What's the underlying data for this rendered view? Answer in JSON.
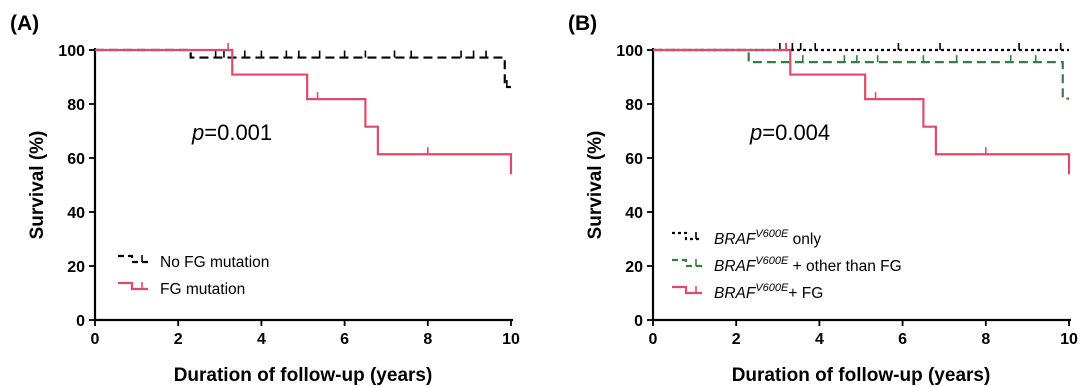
{
  "chart_data": [
    {
      "type": "line",
      "panel_label": "(A)",
      "xlabel": "Duration of follow-up (years)",
      "ylabel": "Survival (%)",
      "xlim": [
        0,
        10
      ],
      "ylim": [
        0,
        100
      ],
      "xticks": [
        0,
        2,
        4,
        6,
        8,
        10
      ],
      "yticks": [
        0,
        20,
        40,
        60,
        80,
        100
      ],
      "annotation": {
        "italic": "p",
        "text": "=0.001"
      },
      "legend_position": "bottom-left",
      "series": [
        {
          "name": "No FG mutation",
          "color": "#000000",
          "dash": "dashed",
          "steps": [
            [
              0,
              100
            ],
            [
              2.3,
              97.2
            ],
            [
              9.85,
              86.3
            ],
            [
              10,
              86.3
            ]
          ],
          "censored": [
            [
              2.9,
              97.2
            ],
            [
              3.1,
              97.2
            ],
            [
              3.3,
              97.2
            ],
            [
              3.6,
              97.2
            ],
            [
              4.0,
              97.2
            ],
            [
              4.6,
              97.2
            ],
            [
              4.9,
              97.2
            ],
            [
              5.4,
              97.2
            ],
            [
              6.0,
              97.2
            ],
            [
              6.5,
              97.2
            ],
            [
              7.2,
              97.2
            ],
            [
              7.6,
              97.2
            ],
            [
              8.8,
              97.2
            ],
            [
              9.1,
              97.2
            ],
            [
              9.4,
              97.2
            ],
            [
              9.9,
              86.3
            ]
          ]
        },
        {
          "name": "FG mutation",
          "color": "#e04a6a",
          "dash": "solid",
          "steps": [
            [
              0,
              100
            ],
            [
              3.3,
              90.9
            ],
            [
              5.1,
              81.8
            ],
            [
              6.5,
              71.6
            ],
            [
              6.8,
              61.4
            ],
            [
              10,
              54.0
            ]
          ],
          "censored": [
            [
              3.2,
              100
            ],
            [
              5.35,
              81.8
            ],
            [
              8.0,
              61.4
            ]
          ]
        }
      ]
    },
    {
      "type": "line",
      "panel_label": "(B)",
      "xlabel": "Duration of follow-up (years)",
      "ylabel": "Survival (%)",
      "xlim": [
        0,
        10
      ],
      "ylim": [
        0,
        100
      ],
      "xticks": [
        0,
        2,
        4,
        6,
        8,
        10
      ],
      "yticks": [
        0,
        20,
        40,
        60,
        80,
        100
      ],
      "annotation": {
        "italic": "p",
        "text": "=0.004"
      },
      "legend_position": "bottom-left",
      "series": [
        {
          "name": "BRAFV600E only",
          "name_main": "BRAF",
          "name_sup": "V600E",
          "name_rest": " only",
          "color": "#000000",
          "dash": "dotted",
          "steps": [
            [
              0,
              100
            ],
            [
              10,
              100
            ]
          ],
          "censored": [
            [
              3.05,
              100
            ],
            [
              3.2,
              100
            ],
            [
              3.35,
              100
            ],
            [
              3.55,
              100
            ],
            [
              3.9,
              100
            ],
            [
              5.9,
              100
            ],
            [
              6.9,
              100
            ],
            [
              8.8,
              100
            ],
            [
              9.8,
              100
            ]
          ]
        },
        {
          "name": "BRAFV600E + other than FG",
          "name_main": "BRAF",
          "name_sup": "V600E",
          "name_rest": " + other than FG",
          "color": "#3a7d44",
          "dash": "dashed",
          "steps": [
            [
              0,
              100
            ],
            [
              2.3,
              95.5
            ],
            [
              9.85,
              82.0
            ],
            [
              10,
              82.0
            ]
          ],
          "censored": [
            [
              3.3,
              95.5
            ],
            [
              3.6,
              95.5
            ],
            [
              4.6,
              95.5
            ],
            [
              4.9,
              95.5
            ],
            [
              5.4,
              95.5
            ],
            [
              6.5,
              95.5
            ],
            [
              7.3,
              95.5
            ],
            [
              8.6,
              95.5
            ],
            [
              9.2,
              95.5
            ]
          ]
        },
        {
          "name": "BRAFV600E+ FG",
          "name_main": "BRAF",
          "name_sup": "V600E",
          "name_rest": "+ FG",
          "color": "#e04a6a",
          "dash": "solid",
          "steps": [
            [
              0,
              100
            ],
            [
              3.3,
              90.9
            ],
            [
              5.1,
              81.8
            ],
            [
              6.5,
              71.6
            ],
            [
              6.8,
              61.4
            ],
            [
              10,
              54.0
            ]
          ],
          "censored": [
            [
              3.2,
              100
            ],
            [
              5.35,
              81.8
            ],
            [
              8.0,
              61.4
            ]
          ]
        }
      ]
    }
  ]
}
